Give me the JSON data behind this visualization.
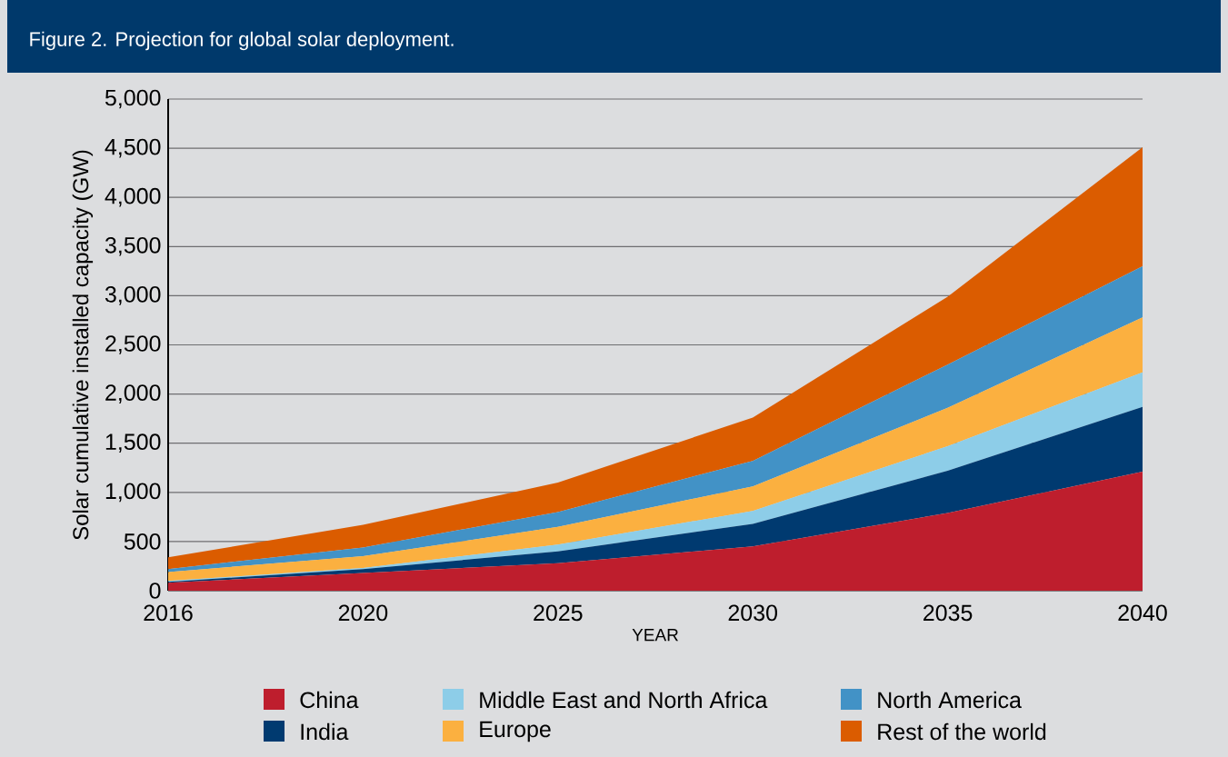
{
  "chart_data": {
    "type": "area",
    "title": "Figure 2. Projection for global solar deployment.",
    "xlabel": "YEAR",
    "ylabel": "Solar cumulative installed capacity (GW)",
    "categories": [
      "2016",
      "2020",
      "2025",
      "2030",
      "2035",
      "2040"
    ],
    "stacked": true,
    "series": [
      {
        "name": "China",
        "color": "#be1e2d",
        "values": [
          80,
          180,
          280,
          450,
          790,
          1210
        ]
      },
      {
        "name": "India",
        "color": "#003a70",
        "values": [
          10,
          40,
          120,
          230,
          430,
          660
        ]
      },
      {
        "name": "Middle East and North Africa",
        "color": "#8dcde8",
        "values": [
          10,
          10,
          70,
          130,
          250,
          350
        ]
      },
      {
        "name": "Europe",
        "color": "#fbb040",
        "values": [
          90,
          120,
          180,
          250,
          390,
          560
        ]
      },
      {
        "name": "North America",
        "color": "#4292c6",
        "values": [
          30,
          90,
          150,
          260,
          440,
          520
        ]
      },
      {
        "name": "Rest of the world",
        "color": "#db5c00",
        "values": [
          120,
          230,
          300,
          440,
          690,
          1210
        ]
      }
    ],
    "ylim": [
      0,
      5000
    ],
    "yticks": [
      0,
      500,
      {
        "value": 1000,
        "label": "1,000"
      },
      {
        "value": 1500,
        "label": "1,500"
      },
      {
        "value": 2000,
        "label": "2,000"
      },
      {
        "value": 2500,
        "label": "2,500"
      },
      {
        "value": 3000,
        "label": "3,000"
      },
      {
        "value": 3500,
        "label": "3,500"
      },
      {
        "value": 4000,
        "label": "4,000"
      },
      {
        "value": 4500,
        "label": "4,500"
      },
      {
        "value": 5000,
        "label": "5,000"
      }
    ],
    "grid": "y",
    "legend": "bottom"
  }
}
